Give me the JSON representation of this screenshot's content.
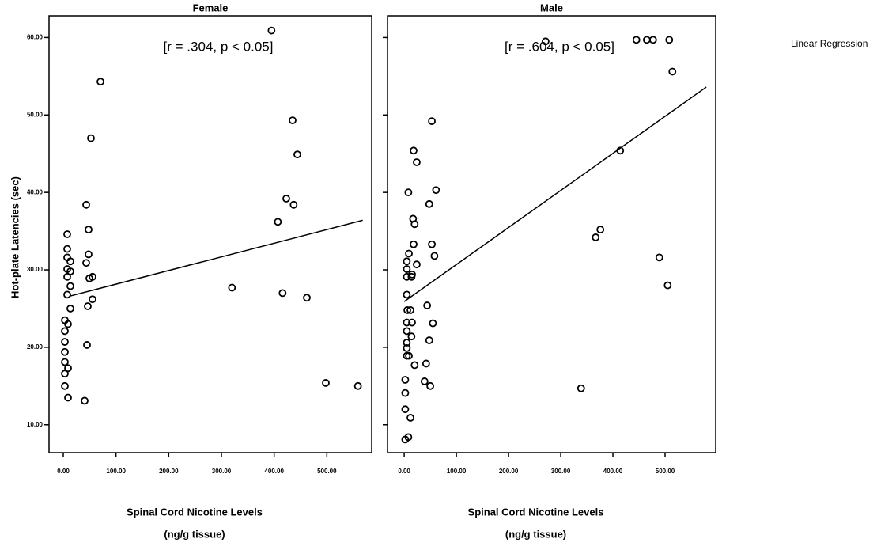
{
  "legend": "Linear Regression",
  "chart_data": [
    {
      "type": "scatter",
      "title": "Female",
      "annotation": "[r = .304, p < 0.05]",
      "ylabel": "Hot-plate Latencies (sec)",
      "xlabel": [
        "Spinal Cord Nicotine Levels",
        "(ng/g tissue)"
      ],
      "color": "#000000",
      "xlim": [
        -27,
        585
      ],
      "ylim": [
        6.4,
        62.8
      ],
      "xticks": [
        {
          "value": 0,
          "label": "0.00"
        },
        {
          "value": 100,
          "label": "100.00"
        },
        {
          "value": 200,
          "label": "200.00"
        },
        {
          "value": 300,
          "label": "300.00"
        },
        {
          "value": 400,
          "label": "400.00"
        },
        {
          "value": 500,
          "label": "500.00"
        }
      ],
      "yticks": [
        {
          "value": 10,
          "label": "10.00"
        },
        {
          "value": 20,
          "label": "20.00"
        },
        {
          "value": 30,
          "label": "30.00"
        },
        {
          "value": 40,
          "label": "40.00"
        },
        {
          "value": 50,
          "label": "50.00"
        },
        {
          "value": 60,
          "label": "60.00"
        }
      ],
      "x": [
        70.6,
        52.5,
        43.5,
        48,
        48,
        43.5,
        55.5,
        49.5,
        55.5,
        46.5,
        45,
        40.5,
        7.5,
        7.5,
        7.5,
        13.5,
        7.5,
        13.5,
        7.5,
        13.5,
        7.5,
        13.5,
        3,
        9,
        3,
        3,
        3,
        3,
        9,
        3,
        3,
        9,
        395,
        435,
        444,
        423,
        437,
        407,
        320,
        416,
        462,
        498,
        559
      ],
      "y": [
        54.3,
        47.0,
        38.4,
        35.2,
        32.0,
        30.9,
        29.1,
        28.9,
        26.2,
        25.3,
        20.3,
        13.1,
        34.6,
        32.7,
        31.6,
        31.1,
        30.1,
        29.8,
        29.1,
        27.9,
        26.8,
        25.0,
        23.5,
        23.0,
        22.1,
        20.7,
        19.4,
        18.1,
        17.3,
        16.6,
        15.0,
        13.5,
        60.9,
        49.3,
        44.9,
        39.2,
        38.4,
        36.2,
        27.7,
        27.0,
        26.4,
        15.4,
        15.0
      ],
      "regression": {
        "x": [
          12,
          568
        ],
        "y": [
          26.6,
          36.4
        ]
      }
    },
    {
      "type": "scatter",
      "title": "Male",
      "annotation": "[r = .604, p < 0.05]",
      "xlabel": [
        "Spinal Cord Nicotine Levels",
        "(ng/g tissue)"
      ],
      "color": "#000000",
      "xlim": [
        -32,
        597
      ],
      "ylim": [
        6.4,
        62.8
      ],
      "xticks": [
        {
          "value": 0,
          "label": "0.00"
        },
        {
          "value": 100,
          "label": "100.00"
        },
        {
          "value": 200,
          "label": "200.00"
        },
        {
          "value": 300,
          "label": "300.00"
        },
        {
          "value": 400,
          "label": "400.00"
        },
        {
          "value": 500,
          "label": "500.00"
        }
      ],
      "yticks": [
        10,
        20,
        30,
        40,
        50,
        60
      ],
      "x": [
        271,
        445,
        465,
        477,
        508,
        514,
        414,
        53,
        18,
        24,
        8,
        61,
        48,
        17,
        20,
        18,
        53,
        58,
        9,
        5,
        24,
        5,
        15,
        5,
        14,
        5,
        44,
        6,
        12,
        5,
        15,
        55,
        5,
        14,
        5,
        48,
        5,
        5,
        9,
        20,
        42,
        39,
        50,
        2,
        2,
        2,
        12,
        8,
        2,
        367,
        376,
        489,
        505,
        339
      ],
      "y": [
        59.5,
        59.7,
        59.7,
        59.7,
        59.7,
        55.6,
        45.4,
        49.2,
        45.4,
        43.9,
        40.0,
        40.3,
        38.5,
        36.6,
        35.9,
        33.3,
        33.3,
        31.8,
        32.1,
        31.1,
        30.7,
        30.1,
        29.4,
        29.1,
        29.1,
        26.8,
        25.4,
        24.8,
        24.8,
        23.2,
        23.2,
        23.1,
        22.1,
        21.4,
        20.6,
        20.9,
        19.9,
        18.9,
        18.9,
        17.7,
        17.9,
        15.6,
        15.0,
        15.8,
        14.1,
        12.0,
        10.9,
        8.4,
        8.1,
        34.2,
        35.2,
        31.6,
        28.0,
        14.7
      ],
      "regression": {
        "x": [
          0,
          579
        ],
        "y": [
          25.9,
          53.6
        ]
      }
    }
  ]
}
